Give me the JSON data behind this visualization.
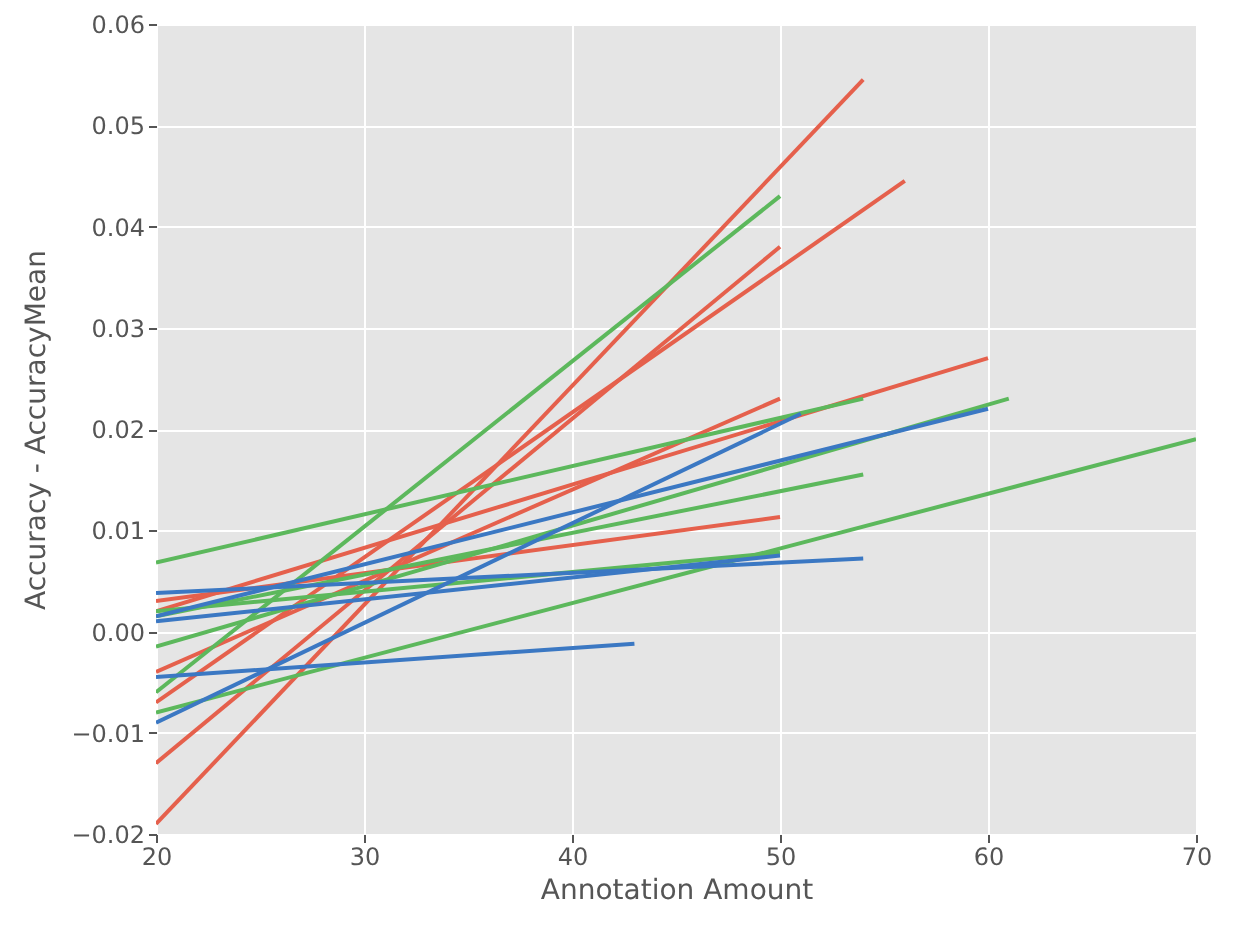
{
  "chart_data": {
    "type": "line",
    "xlabel": "Annotation Amount",
    "ylabel": "Accuracy - AccuracyMean",
    "xlim": [
      20,
      70
    ],
    "xticks": [
      20,
      30,
      40,
      50,
      60,
      70
    ],
    "ylim": [
      -0.02,
      0.06
    ],
    "yticks": [
      {
        "value": -0.02,
        "label": "−0.02"
      },
      {
        "value": -0.01,
        "label": "−0.01"
      },
      {
        "value": 0,
        "label": "0.00"
      },
      {
        "value": 0.01,
        "label": "0.01"
      },
      {
        "value": 0.02,
        "label": "0.02"
      },
      {
        "value": 0.03,
        "label": "0.03"
      },
      {
        "value": 0.04,
        "label": "0.04"
      },
      {
        "value": 0.05,
        "label": "0.05"
      },
      {
        "value": 0.06,
        "label": "0.06"
      }
    ],
    "grid": true,
    "series": [
      {
        "color": "#e5604c",
        "x": [
          20,
          54
        ],
        "values": [
          -0.019,
          0.0545
        ]
      },
      {
        "color": "#e5604c",
        "x": [
          20,
          50
        ],
        "values": [
          -0.013,
          0.038
        ]
      },
      {
        "color": "#e5604c",
        "x": [
          20,
          56
        ],
        "values": [
          -0.007,
          0.0445
        ]
      },
      {
        "color": "#e5604c",
        "x": [
          20,
          50
        ],
        "values": [
          -0.004,
          0.023
        ]
      },
      {
        "color": "#e5604c",
        "x": [
          20,
          60
        ],
        "values": [
          0.002,
          0.027
        ]
      },
      {
        "color": "#e5604c",
        "x": [
          20,
          50
        ],
        "values": [
          0.003,
          0.0113
        ]
      },
      {
        "color": "#5cb85c",
        "x": [
          20,
          50
        ],
        "values": [
          -0.006,
          0.043
        ]
      },
      {
        "color": "#5cb85c",
        "x": [
          20,
          54
        ],
        "values": [
          0.0068,
          0.023
        ]
      },
      {
        "color": "#5cb85c",
        "x": [
          20,
          61
        ],
        "values": [
          -0.0015,
          0.023
        ]
      },
      {
        "color": "#5cb85c",
        "x": [
          20,
          54
        ],
        "values": [
          0.0015,
          0.0155
        ]
      },
      {
        "color": "#5cb85c",
        "x": [
          20,
          50
        ],
        "values": [
          0.002,
          0.0078
        ]
      },
      {
        "color": "#5cb85c",
        "x": [
          20,
          70
        ],
        "values": [
          -0.008,
          0.019
        ]
      },
      {
        "color": "#3b78c3",
        "x": [
          20,
          51
        ],
        "values": [
          -0.009,
          0.0215
        ]
      },
      {
        "color": "#3b78c3",
        "x": [
          20,
          60
        ],
        "values": [
          0.0015,
          0.022
        ]
      },
      {
        "color": "#3b78c3",
        "x": [
          20,
          54
        ],
        "values": [
          0.0038,
          0.0072
        ]
      },
      {
        "color": "#3b78c3",
        "x": [
          20,
          43
        ],
        "values": [
          -0.0045,
          -0.0012
        ]
      },
      {
        "color": "#3b78c3",
        "x": [
          20,
          50
        ],
        "values": [
          0.001,
          0.0075
        ]
      }
    ]
  }
}
